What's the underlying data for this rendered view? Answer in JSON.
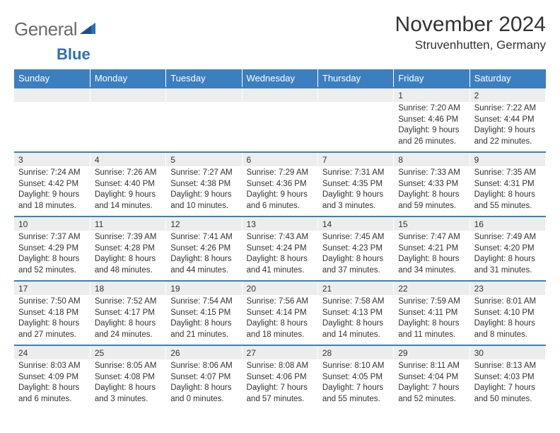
{
  "logo": {
    "word1": "General",
    "word2": "Blue"
  },
  "title": "November 2024",
  "location": "Struvenhutten, Germany",
  "colors": {
    "header_bg": "#3c7fc0",
    "header_text": "#ffffff",
    "numrow_bg": "#eceeee",
    "row_divider": "#3c7fc0",
    "logo_gray": "#6b6b6b",
    "logo_blue": "#2d6fb5",
    "text": "#333333",
    "page_bg": "#ffffff"
  },
  "day_headers": [
    "Sunday",
    "Monday",
    "Tuesday",
    "Wednesday",
    "Thursday",
    "Friday",
    "Saturday"
  ],
  "weeks": [
    {
      "nums": [
        "",
        "",
        "",
        "",
        "",
        "1",
        "2"
      ],
      "sunrise": [
        "",
        "",
        "",
        "",
        "",
        "Sunrise: 7:20 AM",
        "Sunrise: 7:22 AM"
      ],
      "sunset": [
        "",
        "",
        "",
        "",
        "",
        "Sunset: 4:46 PM",
        "Sunset: 4:44 PM"
      ],
      "day1": [
        "",
        "",
        "",
        "",
        "",
        "Daylight: 9 hours",
        "Daylight: 9 hours"
      ],
      "day2": [
        "",
        "",
        "",
        "",
        "",
        "and 26 minutes.",
        "and 22 minutes."
      ]
    },
    {
      "nums": [
        "3",
        "4",
        "5",
        "6",
        "7",
        "8",
        "9"
      ],
      "sunrise": [
        "Sunrise: 7:24 AM",
        "Sunrise: 7:26 AM",
        "Sunrise: 7:27 AM",
        "Sunrise: 7:29 AM",
        "Sunrise: 7:31 AM",
        "Sunrise: 7:33 AM",
        "Sunrise: 7:35 AM"
      ],
      "sunset": [
        "Sunset: 4:42 PM",
        "Sunset: 4:40 PM",
        "Sunset: 4:38 PM",
        "Sunset: 4:36 PM",
        "Sunset: 4:35 PM",
        "Sunset: 4:33 PM",
        "Sunset: 4:31 PM"
      ],
      "day1": [
        "Daylight: 9 hours",
        "Daylight: 9 hours",
        "Daylight: 9 hours",
        "Daylight: 9 hours",
        "Daylight: 9 hours",
        "Daylight: 8 hours",
        "Daylight: 8 hours"
      ],
      "day2": [
        "and 18 minutes.",
        "and 14 minutes.",
        "and 10 minutes.",
        "and 6 minutes.",
        "and 3 minutes.",
        "and 59 minutes.",
        "and 55 minutes."
      ]
    },
    {
      "nums": [
        "10",
        "11",
        "12",
        "13",
        "14",
        "15",
        "16"
      ],
      "sunrise": [
        "Sunrise: 7:37 AM",
        "Sunrise: 7:39 AM",
        "Sunrise: 7:41 AM",
        "Sunrise: 7:43 AM",
        "Sunrise: 7:45 AM",
        "Sunrise: 7:47 AM",
        "Sunrise: 7:49 AM"
      ],
      "sunset": [
        "Sunset: 4:29 PM",
        "Sunset: 4:28 PM",
        "Sunset: 4:26 PM",
        "Sunset: 4:24 PM",
        "Sunset: 4:23 PM",
        "Sunset: 4:21 PM",
        "Sunset: 4:20 PM"
      ],
      "day1": [
        "Daylight: 8 hours",
        "Daylight: 8 hours",
        "Daylight: 8 hours",
        "Daylight: 8 hours",
        "Daylight: 8 hours",
        "Daylight: 8 hours",
        "Daylight: 8 hours"
      ],
      "day2": [
        "and 52 minutes.",
        "and 48 minutes.",
        "and 44 minutes.",
        "and 41 minutes.",
        "and 37 minutes.",
        "and 34 minutes.",
        "and 31 minutes."
      ]
    },
    {
      "nums": [
        "17",
        "18",
        "19",
        "20",
        "21",
        "22",
        "23"
      ],
      "sunrise": [
        "Sunrise: 7:50 AM",
        "Sunrise: 7:52 AM",
        "Sunrise: 7:54 AM",
        "Sunrise: 7:56 AM",
        "Sunrise: 7:58 AM",
        "Sunrise: 7:59 AM",
        "Sunrise: 8:01 AM"
      ],
      "sunset": [
        "Sunset: 4:18 PM",
        "Sunset: 4:17 PM",
        "Sunset: 4:15 PM",
        "Sunset: 4:14 PM",
        "Sunset: 4:13 PM",
        "Sunset: 4:11 PM",
        "Sunset: 4:10 PM"
      ],
      "day1": [
        "Daylight: 8 hours",
        "Daylight: 8 hours",
        "Daylight: 8 hours",
        "Daylight: 8 hours",
        "Daylight: 8 hours",
        "Daylight: 8 hours",
        "Daylight: 8 hours"
      ],
      "day2": [
        "and 27 minutes.",
        "and 24 minutes.",
        "and 21 minutes.",
        "and 18 minutes.",
        "and 14 minutes.",
        "and 11 minutes.",
        "and 8 minutes."
      ]
    },
    {
      "nums": [
        "24",
        "25",
        "26",
        "27",
        "28",
        "29",
        "30"
      ],
      "sunrise": [
        "Sunrise: 8:03 AM",
        "Sunrise: 8:05 AM",
        "Sunrise: 8:06 AM",
        "Sunrise: 8:08 AM",
        "Sunrise: 8:10 AM",
        "Sunrise: 8:11 AM",
        "Sunrise: 8:13 AM"
      ],
      "sunset": [
        "Sunset: 4:09 PM",
        "Sunset: 4:08 PM",
        "Sunset: 4:07 PM",
        "Sunset: 4:06 PM",
        "Sunset: 4:05 PM",
        "Sunset: 4:04 PM",
        "Sunset: 4:03 PM"
      ],
      "day1": [
        "Daylight: 8 hours",
        "Daylight: 8 hours",
        "Daylight: 8 hours",
        "Daylight: 7 hours",
        "Daylight: 7 hours",
        "Daylight: 7 hours",
        "Daylight: 7 hours"
      ],
      "day2": [
        "and 6 minutes.",
        "and 3 minutes.",
        "and 0 minutes.",
        "and 57 minutes.",
        "and 55 minutes.",
        "and 52 minutes.",
        "and 50 minutes."
      ]
    }
  ]
}
